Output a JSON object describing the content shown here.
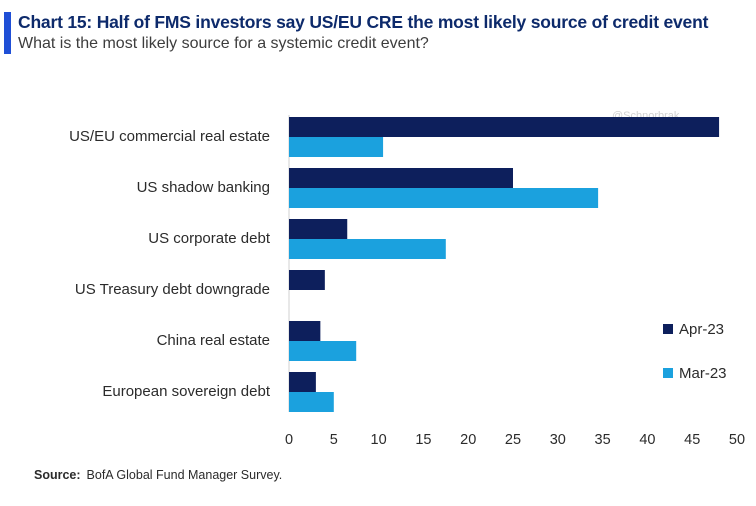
{
  "header": {
    "title": "Chart 15: Half of FMS investors say US/EU CRE the most likely source of credit event",
    "subtitle": "What is the most likely source for a systemic credit event?"
  },
  "watermark": "@Schnorbrak",
  "source": {
    "label": "Source:",
    "text": "BofA Global Fund Manager Survey."
  },
  "colors": {
    "apr": "#0d1f5c",
    "mar": "#1ba1de",
    "accent": "#1f4fd6"
  },
  "chart_data": {
    "type": "bar",
    "orientation": "horizontal",
    "title": "What is the most likely source for a systemic credit event?",
    "categories": [
      "US/EU commercial real estate",
      "US shadow banking",
      "US corporate debt",
      "US Treasury debt downgrade",
      "China real estate",
      "European sovereign debt"
    ],
    "series": [
      {
        "name": "Apr-23",
        "values": [
          48,
          25,
          6.5,
          4,
          3.5,
          3
        ]
      },
      {
        "name": "Mar-23",
        "values": [
          10.5,
          34.5,
          17.5,
          null,
          7.5,
          5
        ]
      }
    ],
    "xlim": [
      0,
      50
    ],
    "xticks": [
      0,
      5,
      10,
      15,
      20,
      25,
      30,
      35,
      40,
      45,
      50
    ],
    "xlabel": "",
    "ylabel": "",
    "legend_position": "right"
  }
}
